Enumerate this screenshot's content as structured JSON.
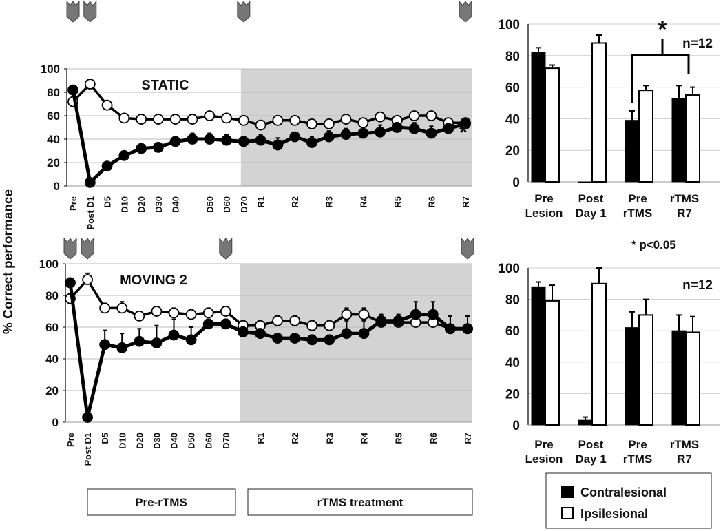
{
  "y_axis_label": "% Correct performance",
  "phase_boxes": [
    "Pre-rTMS",
    "rTMS treatment"
  ],
  "significance_note": "* p<0.05",
  "legend": [
    "Contralesional",
    "Ipsilesional"
  ],
  "colors": {
    "contra": "#000000",
    "ipsi": "#ffffff",
    "shade": "#d3d3d3",
    "marker": "#777777"
  },
  "chart_data": [
    {
      "type": "line",
      "title": "STATIC",
      "ylim": [
        0,
        100
      ],
      "yticks": [
        0,
        20,
        40,
        60,
        80,
        100
      ],
      "annotation": "*",
      "xlabels": [
        "Pre",
        "Post D1",
        "D5",
        "D10",
        "D20",
        "D30",
        "D40",
        "",
        "D50",
        "D60",
        "D70",
        "R1",
        "",
        "R2",
        "",
        "R3",
        "",
        "R4",
        "",
        "R5",
        "",
        "R6",
        "",
        "R7"
      ],
      "shaded_from_index": 10,
      "marker_indices": [
        0,
        1,
        10,
        23
      ],
      "series": [
        {
          "name": "Contralesional",
          "values": [
            82,
            3,
            17,
            26,
            32,
            33,
            38,
            40,
            40,
            39,
            38,
            39,
            35,
            42,
            37,
            42,
            44,
            45,
            46,
            50,
            49,
            45,
            49,
            53
          ],
          "err": [
            3,
            1,
            3,
            3,
            4,
            3,
            3,
            5,
            5,
            5,
            4,
            5,
            6,
            3,
            5,
            5,
            5,
            5,
            6,
            4,
            5,
            6,
            4,
            4
          ]
        },
        {
          "name": "Ipsilesional",
          "values": [
            72,
            87,
            69,
            58,
            57,
            57,
            57,
            57,
            60,
            58,
            56,
            52,
            56,
            56,
            53,
            53,
            57,
            54,
            59,
            56,
            60,
            60,
            54,
            54
          ],
          "err": [
            2,
            4,
            3,
            2,
            2,
            2,
            2,
            2,
            2,
            2,
            2,
            3,
            3,
            3,
            3,
            3,
            3,
            3,
            3,
            3,
            3,
            3,
            3,
            3
          ]
        }
      ]
    },
    {
      "type": "line",
      "title": "MOVING 2",
      "ylim": [
        0,
        100
      ],
      "yticks": [
        0,
        20,
        40,
        60,
        80,
        100
      ],
      "xlabels": [
        "Pre",
        "Post D1",
        "D5",
        "D10",
        "D20",
        "D30",
        "D40",
        "D50",
        "D60",
        "D70",
        "",
        "R1",
        "",
        "R2",
        "",
        "R3",
        "",
        "R4",
        "",
        "R5",
        "",
        "R6",
        "",
        "R7"
      ],
      "shaded_from_index": 10,
      "marker_indices": [
        0,
        1,
        9,
        23
      ],
      "series": [
        {
          "name": "Contralesional",
          "values": [
            88,
            3,
            49,
            47,
            51,
            50,
            55,
            52,
            62,
            62,
            57,
            56,
            53,
            53,
            52,
            52,
            56,
            56,
            64,
            64,
            68,
            68,
            59,
            59
          ],
          "err": [
            3,
            1,
            9,
            9,
            8,
            11,
            10,
            8,
            3,
            3,
            3,
            3,
            3,
            3,
            3,
            3,
            8,
            8,
            3,
            3,
            8,
            8,
            8,
            8
          ]
        },
        {
          "name": "Ipsilesional",
          "values": [
            78,
            90,
            72,
            72,
            67,
            70,
            69,
            68,
            69,
            70,
            61,
            61,
            64,
            64,
            61,
            61,
            68,
            68,
            63,
            63,
            63,
            63,
            59,
            59
          ],
          "err": [
            3,
            4,
            3,
            4,
            3,
            3,
            3,
            3,
            3,
            3,
            3,
            3,
            3,
            3,
            3,
            3,
            4,
            4,
            5,
            5,
            5,
            5,
            8,
            8
          ]
        }
      ]
    },
    {
      "type": "bar",
      "title": "",
      "annotation": "n=12",
      "ylim": [
        0,
        100
      ],
      "yticks": [
        0,
        20,
        40,
        60,
        80,
        100
      ],
      "categories": [
        [
          "Pre",
          "Lesion"
        ],
        [
          "Post",
          "Day 1"
        ],
        [
          "Pre",
          "rTMS"
        ],
        [
          "rTMS",
          "R7"
        ]
      ],
      "series": [
        {
          "name": "Contralesional",
          "values": [
            82,
            0,
            39,
            53
          ],
          "err": [
            3,
            0,
            6,
            8
          ]
        },
        {
          "name": "Ipsilesional",
          "values": [
            72,
            88,
            58,
            55
          ],
          "err": [
            2,
            5,
            3,
            5
          ]
        }
      ],
      "significance": {
        "between": [
          2,
          3
        ],
        "series": "Contralesional",
        "label": "*"
      }
    },
    {
      "type": "bar",
      "title": "",
      "annotation": "n=12",
      "ylim": [
        0,
        100
      ],
      "yticks": [
        0,
        20,
        40,
        60,
        80,
        100
      ],
      "categories": [
        [
          "Pre",
          "Lesion"
        ],
        [
          "Post",
          "Day 1"
        ],
        [
          "Pre",
          "rTMS"
        ],
        [
          "rTMS",
          "R7"
        ]
      ],
      "series": [
        {
          "name": "Contralesional",
          "values": [
            88,
            3,
            62,
            60
          ],
          "err": [
            3,
            2,
            10,
            10
          ]
        },
        {
          "name": "Ipsilesional",
          "values": [
            79,
            90,
            70,
            59
          ],
          "err": [
            10,
            10,
            10,
            10
          ]
        }
      ]
    }
  ]
}
